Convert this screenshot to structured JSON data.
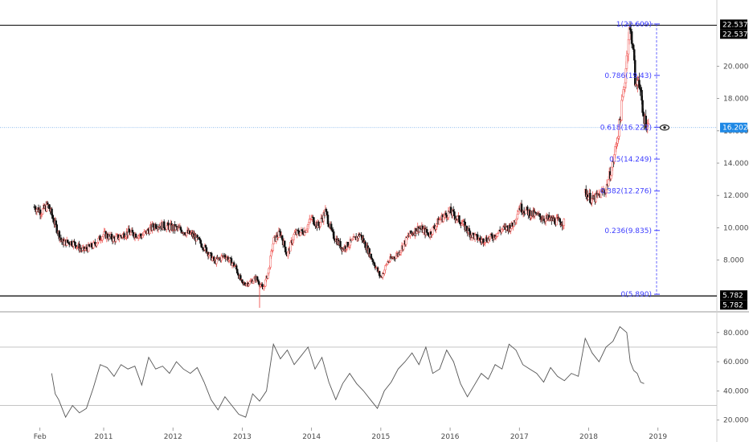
{
  "colors": {
    "up": "#ef5350",
    "down": "#111111",
    "fib": "#3d3dff",
    "price_line": "#6aa6e8",
    "rsi_line": "#555555",
    "price_tag": "#1e88e5",
    "label_tag": "#000000"
  },
  "icons": {
    "visibility": "eye-icon"
  },
  "chart_data": [
    {
      "type": "candlestick",
      "ylim": [
        5.0,
        23.2
      ],
      "yticks": [
        {
          "value": 8,
          "label": "8.000"
        },
        {
          "value": 10,
          "label": "10.000"
        },
        {
          "value": 12,
          "label": "12.000"
        },
        {
          "value": 14,
          "label": "14.000"
        },
        {
          "value": 16,
          "label": "16.000"
        },
        {
          "value": 18,
          "label": "18.000"
        },
        {
          "value": 20,
          "label": "20.000"
        }
      ],
      "xticks": [
        {
          "value": 2010.08,
          "label": "Feb"
        },
        {
          "value": 2011.0,
          "label": "2011"
        },
        {
          "value": 2012.0,
          "label": "2012"
        },
        {
          "value": 2013.0,
          "label": "2013"
        },
        {
          "value": 2014.0,
          "label": "2014"
        },
        {
          "value": 2015.0,
          "label": "2015"
        },
        {
          "value": 2016.0,
          "label": "2016"
        },
        {
          "value": 2017.0,
          "label": "2017"
        },
        {
          "value": 2018.0,
          "label": "2018"
        },
        {
          "value": 2019.0,
          "label": "2019"
        }
      ],
      "xlim": [
        2009.55,
        2019.85
      ],
      "price_path": [
        [
          2010.0,
          11.3
        ],
        [
          2010.1,
          11.0
        ],
        [
          2010.2,
          11.4
        ],
        [
          2010.3,
          10.2
        ],
        [
          2010.4,
          9.1
        ],
        [
          2010.55,
          9.1
        ],
        [
          2010.7,
          8.6
        ],
        [
          2010.85,
          8.9
        ],
        [
          2011.0,
          9.6
        ],
        [
          2011.15,
          9.3
        ],
        [
          2011.35,
          9.7
        ],
        [
          2011.55,
          9.5
        ],
        [
          2011.75,
          10.2
        ],
        [
          2011.9,
          10.1
        ],
        [
          2012.1,
          9.9
        ],
        [
          2012.3,
          9.5
        ],
        [
          2012.45,
          8.8
        ],
        [
          2012.6,
          7.9
        ],
        [
          2012.75,
          8.3
        ],
        [
          2012.9,
          7.6
        ],
        [
          2013.0,
          6.5
        ],
        [
          2013.1,
          6.6
        ],
        [
          2013.2,
          6.9
        ],
        [
          2013.3,
          6.2
        ],
        [
          2013.38,
          7.3
        ],
        [
          2013.45,
          9.2
        ],
        [
          2013.55,
          9.7
        ],
        [
          2013.65,
          8.3
        ],
        [
          2013.75,
          9.6
        ],
        [
          2013.9,
          9.8
        ],
        [
          2014.0,
          10.6
        ],
        [
          2014.1,
          10.1
        ],
        [
          2014.2,
          11.0
        ],
        [
          2014.3,
          9.6
        ],
        [
          2014.45,
          8.7
        ],
        [
          2014.6,
          9.2
        ],
        [
          2014.7,
          9.6
        ],
        [
          2014.85,
          8.3
        ],
        [
          2015.0,
          6.9
        ],
        [
          2015.1,
          7.9
        ],
        [
          2015.25,
          8.4
        ],
        [
          2015.4,
          9.5
        ],
        [
          2015.55,
          10.0
        ],
        [
          2015.7,
          9.6
        ],
        [
          2015.85,
          10.5
        ],
        [
          2016.0,
          11.0
        ],
        [
          2016.15,
          10.4
        ],
        [
          2016.3,
          9.6
        ],
        [
          2016.45,
          9.2
        ],
        [
          2016.6,
          9.4
        ],
        [
          2016.75,
          9.9
        ],
        [
          2016.9,
          10.1
        ],
        [
          2017.0,
          11.3
        ],
        [
          2017.15,
          10.9
        ],
        [
          2017.35,
          10.6
        ],
        [
          2017.55,
          10.4
        ],
        [
          2017.65,
          10.3
        ]
      ],
      "price_path_2": [
        [
          2017.95,
          12.2
        ],
        [
          2018.05,
          11.7
        ],
        [
          2018.15,
          12.0
        ],
        [
          2018.25,
          12.4
        ],
        [
          2018.35,
          14.0
        ],
        [
          2018.45,
          16.5
        ],
        [
          2018.52,
          19.0
        ],
        [
          2018.58,
          22.2
        ],
        [
          2018.63,
          21.8
        ],
        [
          2018.68,
          18.5
        ],
        [
          2018.72,
          19.5
        ],
        [
          2018.78,
          17.0
        ],
        [
          2018.82,
          16.6
        ],
        [
          2018.87,
          16.2
        ]
      ],
      "fib_levels": [
        {
          "ratio": 1.0,
          "value": 22.609,
          "label": "1(22.609)"
        },
        {
          "ratio": 0.786,
          "value": 19.43,
          "label": "0.786(19.43)"
        },
        {
          "ratio": 0.618,
          "value": 16.222,
          "label": "0.618(16.222)"
        },
        {
          "ratio": 0.5,
          "value": 14.249,
          "label": "0.5(14.249)"
        },
        {
          "ratio": 0.382,
          "value": 12.276,
          "label": "0.382(12.276)"
        },
        {
          "ratio": 0.236,
          "value": 9.835,
          "label": "0.236(9.835)"
        },
        {
          "ratio": 0.0,
          "value": 5.89,
          "label": "0(5.890)"
        }
      ],
      "fib_x": 2018.98,
      "upper_line": {
        "value": 22.537,
        "label": "22.537"
      },
      "lower_line": {
        "value": 5.782,
        "label": "5.782"
      },
      "last_price": {
        "value": 16.202,
        "label": "16.202"
      }
    },
    {
      "type": "line",
      "series": [
        {
          "name": "",
          "values": [
            [
              2010.25,
              52
            ],
            [
              2010.3,
              38
            ],
            [
              2010.35,
              34
            ],
            [
              2010.45,
              22
            ],
            [
              2010.55,
              30
            ],
            [
              2010.65,
              25
            ],
            [
              2010.75,
              28
            ],
            [
              2010.85,
              42
            ],
            [
              2010.95,
              58
            ],
            [
              2011.05,
              56
            ],
            [
              2011.15,
              50
            ],
            [
              2011.25,
              58
            ],
            [
              2011.35,
              55
            ],
            [
              2011.45,
              57
            ],
            [
              2011.55,
              44
            ],
            [
              2011.65,
              63
            ],
            [
              2011.75,
              55
            ],
            [
              2011.85,
              57
            ],
            [
              2011.95,
              52
            ],
            [
              2012.05,
              60
            ],
            [
              2012.15,
              55
            ],
            [
              2012.25,
              52
            ],
            [
              2012.35,
              56
            ],
            [
              2012.45,
              46
            ],
            [
              2012.55,
              34
            ],
            [
              2012.65,
              27
            ],
            [
              2012.75,
              36
            ],
            [
              2012.85,
              30
            ],
            [
              2012.95,
              24
            ],
            [
              2013.05,
              22
            ],
            [
              2013.15,
              38
            ],
            [
              2013.25,
              33
            ],
            [
              2013.35,
              40
            ],
            [
              2013.45,
              72
            ],
            [
              2013.55,
              62
            ],
            [
              2013.65,
              68
            ],
            [
              2013.75,
              58
            ],
            [
              2013.85,
              64
            ],
            [
              2013.95,
              70
            ],
            [
              2014.05,
              55
            ],
            [
              2014.15,
              63
            ],
            [
              2014.25,
              46
            ],
            [
              2014.35,
              34
            ],
            [
              2014.45,
              45
            ],
            [
              2014.55,
              52
            ],
            [
              2014.65,
              45
            ],
            [
              2014.75,
              40
            ],
            [
              2014.85,
              34
            ],
            [
              2014.95,
              28
            ],
            [
              2015.05,
              40
            ],
            [
              2015.15,
              46
            ],
            [
              2015.25,
              55
            ],
            [
              2015.35,
              60
            ],
            [
              2015.45,
              66
            ],
            [
              2015.55,
              58
            ],
            [
              2015.65,
              70
            ],
            [
              2015.75,
              52
            ],
            [
              2015.85,
              55
            ],
            [
              2015.95,
              68
            ],
            [
              2016.05,
              60
            ],
            [
              2016.15,
              45
            ],
            [
              2016.25,
              36
            ],
            [
              2016.35,
              44
            ],
            [
              2016.45,
              52
            ],
            [
              2016.55,
              48
            ],
            [
              2016.65,
              58
            ],
            [
              2016.75,
              55
            ],
            [
              2016.85,
              72
            ],
            [
              2016.95,
              68
            ],
            [
              2017.05,
              58
            ],
            [
              2017.15,
              55
            ],
            [
              2017.25,
              52
            ],
            [
              2017.35,
              46
            ],
            [
              2017.45,
              56
            ],
            [
              2017.55,
              50
            ],
            [
              2017.65,
              47
            ],
            [
              2017.75,
              52
            ],
            [
              2017.85,
              50
            ],
            [
              2017.95,
              76
            ],
            [
              2018.05,
              66
            ],
            [
              2018.15,
              60
            ],
            [
              2018.25,
              70
            ],
            [
              2018.35,
              74
            ],
            [
              2018.45,
              84
            ],
            [
              2018.55,
              80
            ],
            [
              2018.6,
              60
            ],
            [
              2018.65,
              54
            ],
            [
              2018.7,
              52
            ],
            [
              2018.75,
              46
            ],
            [
              2018.8,
              45
            ]
          ]
        }
      ],
      "ylim": [
        16,
        92
      ],
      "guide_lines": [
        30,
        70
      ],
      "yticks": [
        {
          "value": 20,
          "label": "20.0000"
        },
        {
          "value": 40,
          "label": "40.0000"
        },
        {
          "value": 60,
          "label": "60.0000"
        },
        {
          "value": 80,
          "label": "80.0000"
        }
      ]
    }
  ]
}
